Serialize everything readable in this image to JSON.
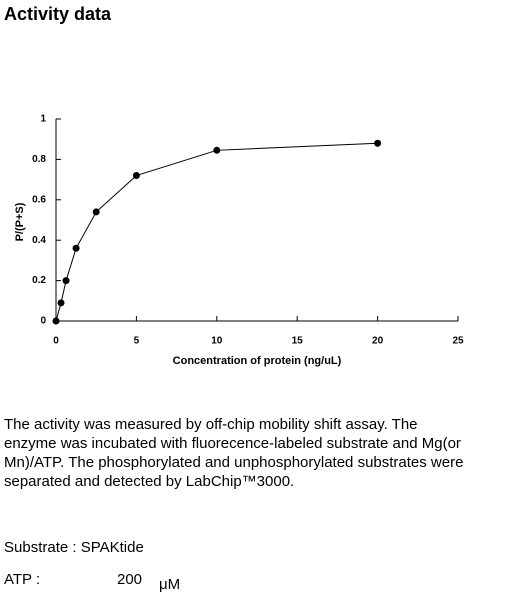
{
  "title": "Activity data",
  "chart_data": {
    "type": "line",
    "x_label": "Concentration of protein (ng/uL)",
    "y_label": "P/(P+S)",
    "x": [
      0,
      0.3125,
      0.625,
      1.25,
      2.5,
      5,
      10,
      20
    ],
    "values": [
      0,
      0.09,
      0.2,
      0.36,
      0.54,
      0.72,
      0.845,
      0.88
    ],
    "color": "#000000",
    "xlim": [
      0,
      25
    ],
    "xticks": [
      0,
      5,
      10,
      15,
      20,
      25
    ],
    "ylim": [
      0,
      1
    ],
    "yticks": [
      0,
      0.2,
      0.4,
      0.6,
      0.8,
      1
    ],
    "grid": false
  },
  "paragraph": [
    "The activity was measured by off-chip mobility shift assay. The",
    "enzyme was incubated with fluorecence-labeled  substrate and Mg(or",
    "Mn)/ATP. The phosphorylated and unphosphorylated substrates were",
    "separated and detected by LabChip™3000."
  ],
  "substrate": "Substrate : SPAKtide",
  "atp": {
    "label": "ATP :",
    "value": 200,
    "unit": "μM"
  }
}
